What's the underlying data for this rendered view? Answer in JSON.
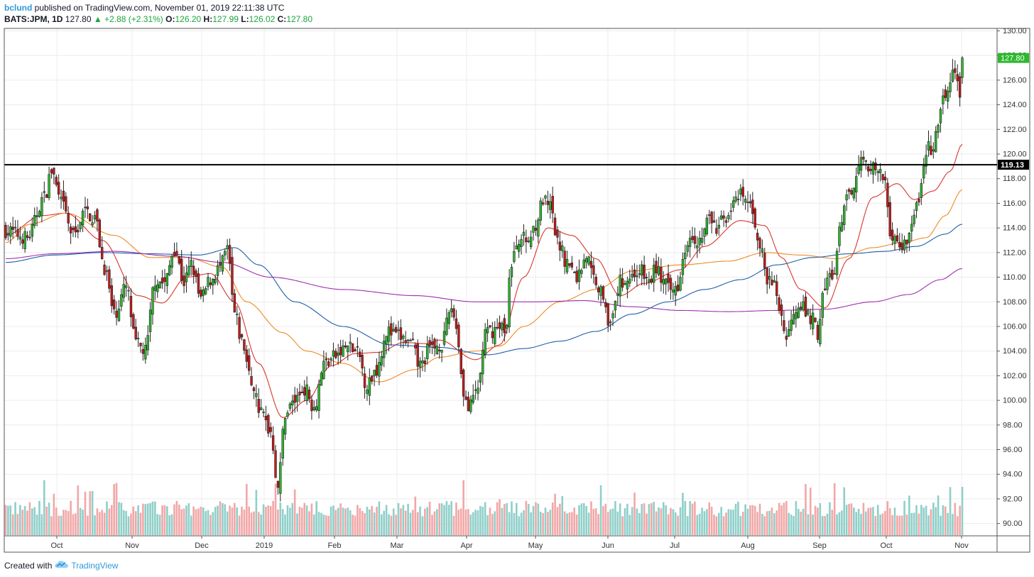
{
  "header": {
    "user": "bclund",
    "published_text": "published on TradingView.com, November 01, 2019 22:11:38 UTC",
    "symbol": "BATS:JPM, 1D",
    "last": "127.80",
    "change_arrow": "▲",
    "change": "+2.88 (+2.31%)",
    "o_label": "O:",
    "o_value": "126.20",
    "h_label": "H:",
    "h_value": "127.99",
    "l_label": "L:",
    "l_value": "126.02",
    "c_label": "C:",
    "c_value": "127.80"
  },
  "footer": {
    "created_with": "Created with",
    "brand": "TradingView",
    "logo_icon": "tradingview-cloud-icon"
  },
  "colors": {
    "up": "#2eb82e",
    "down": "#c41b1b",
    "vol_up": "#8fcfc9",
    "vol_down": "#f2a7a7",
    "ma20": "#d9362f",
    "ma50": "#f08a24",
    "ma100": "#1f5fa8",
    "ma200": "#a12fb0",
    "grid": "#ececec",
    "level_line": "#000000"
  },
  "chart_data": {
    "type": "candlestick",
    "y_axis_ticks": [
      "130.00",
      "128.00",
      "126.00",
      "124.00",
      "122.00",
      "120.00",
      "118.00",
      "116.00",
      "114.00",
      "112.00",
      "110.00",
      "108.00",
      "106.00",
      "104.00",
      "102.00",
      "100.00",
      "98.00",
      "96.00",
      "94.00",
      "92.00",
      "90.00"
    ],
    "ylim": [
      89,
      130.2
    ],
    "x_axis_ticks": [
      "Oct",
      "Nov",
      "Dec",
      "2019",
      "Feb",
      "Mar",
      "Apr",
      "May",
      "Jun",
      "Jul",
      "Aug",
      "Sep",
      "Oct",
      "Nov"
    ],
    "last_price_label": "127.80",
    "horizontal_level": {
      "value": 119.13,
      "label": "119.13"
    },
    "anchors": [
      {
        "d": 0,
        "p": 113.8
      },
      {
        "d": 9,
        "p": 113.2
      },
      {
        "d": 16,
        "p": 116.5
      },
      {
        "d": 19,
        "p": 118.6
      },
      {
        "d": 23,
        "p": 116.0
      },
      {
        "d": 28,
        "p": 113.4
      },
      {
        "d": 33,
        "p": 115.3
      },
      {
        "d": 37,
        "p": 114.8
      },
      {
        "d": 41,
        "p": 110.8
      },
      {
        "d": 45,
        "p": 107.0
      },
      {
        "d": 50,
        "p": 109.2
      },
      {
        "d": 54,
        "p": 104.6
      },
      {
        "d": 58,
        "p": 104.0
      },
      {
        "d": 62,
        "p": 109.8
      },
      {
        "d": 66,
        "p": 109.5
      },
      {
        "d": 70,
        "p": 112.3
      },
      {
        "d": 74,
        "p": 109.6
      },
      {
        "d": 77,
        "p": 111.0
      },
      {
        "d": 81,
        "p": 108.2
      },
      {
        "d": 85,
        "p": 109.8
      },
      {
        "d": 89,
        "p": 110.8
      },
      {
        "d": 92,
        "p": 112.2
      },
      {
        "d": 95,
        "p": 107.0
      },
      {
        "d": 98,
        "p": 104.8
      },
      {
        "d": 102,
        "p": 101.5
      },
      {
        "d": 106,
        "p": 99.0
      },
      {
        "d": 110,
        "p": 97.5
      },
      {
        "d": 113,
        "p": 93.0
      },
      {
        "d": 116,
        "p": 99.0
      },
      {
        "d": 120,
        "p": 100.0
      },
      {
        "d": 124,
        "p": 101.0
      },
      {
        "d": 128,
        "p": 99.5
      },
      {
        "d": 132,
        "p": 103.0
      },
      {
        "d": 137,
        "p": 103.6
      },
      {
        "d": 142,
        "p": 104.4
      },
      {
        "d": 146,
        "p": 103.8
      },
      {
        "d": 150,
        "p": 101.2
      },
      {
        "d": 154,
        "p": 102.6
      },
      {
        "d": 158,
        "p": 105.6
      },
      {
        "d": 163,
        "p": 105.2
      },
      {
        "d": 168,
        "p": 104.6
      },
      {
        "d": 172,
        "p": 102.8
      },
      {
        "d": 176,
        "p": 104.2
      },
      {
        "d": 181,
        "p": 104.6
      },
      {
        "d": 185,
        "p": 107.6
      },
      {
        "d": 187,
        "p": 106.0
      },
      {
        "d": 190,
        "p": 100.8
      },
      {
        "d": 192,
        "p": 99.2
      },
      {
        "d": 196,
        "p": 101.0
      },
      {
        "d": 199,
        "p": 105.4
      },
      {
        "d": 204,
        "p": 105.8
      },
      {
        "d": 208,
        "p": 106.0
      },
      {
        "d": 209,
        "p": 110.2
      },
      {
        "d": 213,
        "p": 113.2
      },
      {
        "d": 217,
        "p": 113.0
      },
      {
        "d": 220,
        "p": 114.4
      },
      {
        "d": 223,
        "p": 116.2
      },
      {
        "d": 226,
        "p": 115.6
      },
      {
        "d": 229,
        "p": 112.8
      },
      {
        "d": 233,
        "p": 111.2
      },
      {
        "d": 237,
        "p": 110.0
      },
      {
        "d": 241,
        "p": 111.8
      },
      {
        "d": 244,
        "p": 110.0
      },
      {
        "d": 248,
        "p": 108.6
      },
      {
        "d": 251,
        "p": 106.0
      },
      {
        "d": 255,
        "p": 109.6
      },
      {
        "d": 259,
        "p": 110.0
      },
      {
        "d": 263,
        "p": 110.6
      },
      {
        "d": 267,
        "p": 109.6
      },
      {
        "d": 270,
        "p": 110.8
      },
      {
        "d": 273,
        "p": 109.6
      },
      {
        "d": 276,
        "p": 108.8
      },
      {
        "d": 279,
        "p": 109.4
      },
      {
        "d": 281,
        "p": 111.8
      },
      {
        "d": 284,
        "p": 113.6
      },
      {
        "d": 288,
        "p": 113.0
      },
      {
        "d": 292,
        "p": 114.8
      },
      {
        "d": 295,
        "p": 113.8
      },
      {
        "d": 298,
        "p": 114.8
      },
      {
        "d": 302,
        "p": 115.8
      },
      {
        "d": 305,
        "p": 116.6
      },
      {
        "d": 308,
        "p": 116.0
      },
      {
        "d": 310,
        "p": 115.4
      },
      {
        "d": 312,
        "p": 113.4
      },
      {
        "d": 314,
        "p": 111.8
      },
      {
        "d": 316,
        "p": 109.6
      },
      {
        "d": 319,
        "p": 109.4
      },
      {
        "d": 322,
        "p": 106.8
      },
      {
        "d": 324,
        "p": 105.0
      },
      {
        "d": 327,
        "p": 107.4
      },
      {
        "d": 330,
        "p": 108.0
      },
      {
        "d": 332,
        "p": 107.0
      },
      {
        "d": 335,
        "p": 106.6
      },
      {
        "d": 337,
        "p": 105.4
      },
      {
        "d": 339,
        "p": 108.4
      },
      {
        "d": 342,
        "p": 110.2
      },
      {
        "d": 344,
        "p": 110.2
      },
      {
        "d": 346,
        "p": 113.6
      },
      {
        "d": 349,
        "p": 116.2
      },
      {
        "d": 352,
        "p": 117.6
      },
      {
        "d": 354,
        "p": 119.6
      },
      {
        "d": 357,
        "p": 119.2
      },
      {
        "d": 360,
        "p": 118.8
      },
      {
        "d": 363,
        "p": 118.2
      },
      {
        "d": 365,
        "p": 117.8
      },
      {
        "d": 367,
        "p": 113.6
      },
      {
        "d": 369,
        "p": 113.4
      },
      {
        "d": 371,
        "p": 112.2
      },
      {
        "d": 373,
        "p": 112.8
      },
      {
        "d": 376,
        "p": 114.2
      },
      {
        "d": 378,
        "p": 115.6
      },
      {
        "d": 381,
        "p": 118.8
      },
      {
        "d": 383,
        "p": 120.6
      },
      {
        "d": 385,
        "p": 120.2
      },
      {
        "d": 387,
        "p": 122.4
      },
      {
        "d": 389,
        "p": 124.4
      },
      {
        "d": 391,
        "p": 125.2
      },
      {
        "d": 393,
        "p": 126.4
      },
      {
        "d": 395,
        "p": 126.2
      },
      {
        "d": 396,
        "p": 124.9
      },
      {
        "d": 397,
        "p": 127.8
      }
    ],
    "moving_averages": [
      {
        "name": "MA20",
        "color_key": "ma20",
        "anchors": [
          {
            "d": 0,
            "p": 113.4
          },
          {
            "d": 15,
            "p": 115.0
          },
          {
            "d": 25,
            "p": 115.2
          },
          {
            "d": 40,
            "p": 113.0
          },
          {
            "d": 55,
            "p": 108.5
          },
          {
            "d": 65,
            "p": 107.9
          },
          {
            "d": 75,
            "p": 110.0
          },
          {
            "d": 85,
            "p": 110.3
          },
          {
            "d": 95,
            "p": 108.0
          },
          {
            "d": 105,
            "p": 103.0
          },
          {
            "d": 115,
            "p": 98.6
          },
          {
            "d": 125,
            "p": 100.0
          },
          {
            "d": 135,
            "p": 102.8
          },
          {
            "d": 145,
            "p": 103.8
          },
          {
            "d": 155,
            "p": 103.9
          },
          {
            "d": 165,
            "p": 104.7
          },
          {
            "d": 175,
            "p": 104.6
          },
          {
            "d": 180,
            "p": 104.9
          },
          {
            "d": 195,
            "p": 103.3
          },
          {
            "d": 205,
            "p": 104.5
          },
          {
            "d": 215,
            "p": 110.0
          },
          {
            "d": 225,
            "p": 114.0
          },
          {
            "d": 235,
            "p": 113.4
          },
          {
            "d": 245,
            "p": 111.5
          },
          {
            "d": 255,
            "p": 108.5
          },
          {
            "d": 265,
            "p": 109.5
          },
          {
            "d": 280,
            "p": 110.6
          },
          {
            "d": 290,
            "p": 112.5
          },
          {
            "d": 305,
            "p": 114.6
          },
          {
            "d": 315,
            "p": 114.2
          },
          {
            "d": 322,
            "p": 111.6
          },
          {
            "d": 330,
            "p": 109.0
          },
          {
            "d": 340,
            "p": 107.5
          },
          {
            "d": 350,
            "p": 111.5
          },
          {
            "d": 360,
            "p": 116.5
          },
          {
            "d": 370,
            "p": 117.6
          },
          {
            "d": 377,
            "p": 116.3
          },
          {
            "d": 385,
            "p": 117.0
          },
          {
            "d": 392,
            "p": 118.6
          },
          {
            "d": 397,
            "p": 120.8
          }
        ]
      },
      {
        "name": "MA50",
        "color_key": "ma50",
        "anchors": [
          {
            "d": 0,
            "p": 112.8
          },
          {
            "d": 10,
            "p": 114.3
          },
          {
            "d": 25,
            "p": 115.2
          },
          {
            "d": 45,
            "p": 113.4
          },
          {
            "d": 60,
            "p": 111.6
          },
          {
            "d": 75,
            "p": 111.6
          },
          {
            "d": 90,
            "p": 110.8
          },
          {
            "d": 100,
            "p": 108.0
          },
          {
            "d": 115,
            "p": 105.5
          },
          {
            "d": 125,
            "p": 104.0
          },
          {
            "d": 140,
            "p": 103.0
          },
          {
            "d": 155,
            "p": 101.5
          },
          {
            "d": 170,
            "p": 102.5
          },
          {
            "d": 180,
            "p": 103.5
          },
          {
            "d": 195,
            "p": 104.0
          },
          {
            "d": 205,
            "p": 104.4
          },
          {
            "d": 215,
            "p": 106.0
          },
          {
            "d": 230,
            "p": 108.0
          },
          {
            "d": 245,
            "p": 109.0
          },
          {
            "d": 260,
            "p": 110.5
          },
          {
            "d": 280,
            "p": 111.0
          },
          {
            "d": 300,
            "p": 111.3
          },
          {
            "d": 315,
            "p": 112.0
          },
          {
            "d": 330,
            "p": 111.8
          },
          {
            "d": 345,
            "p": 111.5
          },
          {
            "d": 360,
            "p": 112.4
          },
          {
            "d": 372,
            "p": 112.8
          },
          {
            "d": 382,
            "p": 113.2
          },
          {
            "d": 390,
            "p": 115.0
          },
          {
            "d": 397,
            "p": 117.1
          }
        ]
      },
      {
        "name": "MA100",
        "color_key": "ma100",
        "anchors": [
          {
            "d": 0,
            "p": 111.2
          },
          {
            "d": 20,
            "p": 111.8
          },
          {
            "d": 40,
            "p": 112.0
          },
          {
            "d": 60,
            "p": 111.9
          },
          {
            "d": 80,
            "p": 111.8
          },
          {
            "d": 95,
            "p": 112.4
          },
          {
            "d": 105,
            "p": 111.0
          },
          {
            "d": 120,
            "p": 108.0
          },
          {
            "d": 140,
            "p": 106.0
          },
          {
            "d": 160,
            "p": 104.5
          },
          {
            "d": 180,
            "p": 104.3
          },
          {
            "d": 200,
            "p": 103.7
          },
          {
            "d": 215,
            "p": 104.2
          },
          {
            "d": 230,
            "p": 104.8
          },
          {
            "d": 245,
            "p": 105.6
          },
          {
            "d": 260,
            "p": 107.0
          },
          {
            "d": 275,
            "p": 108.0
          },
          {
            "d": 290,
            "p": 109.0
          },
          {
            "d": 305,
            "p": 109.8
          },
          {
            "d": 320,
            "p": 111.0
          },
          {
            "d": 335,
            "p": 111.6
          },
          {
            "d": 350,
            "p": 111.9
          },
          {
            "d": 365,
            "p": 112.1
          },
          {
            "d": 378,
            "p": 112.5
          },
          {
            "d": 390,
            "p": 113.5
          },
          {
            "d": 397,
            "p": 114.3
          }
        ]
      },
      {
        "name": "MA200",
        "color_key": "ma200",
        "anchors": [
          {
            "d": 0,
            "p": 111.5
          },
          {
            "d": 20,
            "p": 111.9
          },
          {
            "d": 45,
            "p": 112.1
          },
          {
            "d": 70,
            "p": 111.7
          },
          {
            "d": 90,
            "p": 111.2
          },
          {
            "d": 110,
            "p": 110.0
          },
          {
            "d": 140,
            "p": 109.0
          },
          {
            "d": 170,
            "p": 108.5
          },
          {
            "d": 195,
            "p": 108.0
          },
          {
            "d": 220,
            "p": 108.0
          },
          {
            "d": 240,
            "p": 108.1
          },
          {
            "d": 260,
            "p": 107.6
          },
          {
            "d": 280,
            "p": 107.3
          },
          {
            "d": 300,
            "p": 107.2
          },
          {
            "d": 320,
            "p": 107.3
          },
          {
            "d": 340,
            "p": 107.4
          },
          {
            "d": 360,
            "p": 108.0
          },
          {
            "d": 375,
            "p": 108.6
          },
          {
            "d": 388,
            "p": 109.8
          },
          {
            "d": 397,
            "p": 110.7
          }
        ]
      }
    ],
    "volume_spikes": [
      {
        "d": 16,
        "v": 1.6
      },
      {
        "d": 30,
        "v": 1.45
      },
      {
        "d": 112,
        "v": 1.5
      },
      {
        "d": 190,
        "v": 1.6
      },
      {
        "d": 318,
        "v": 0.8
      },
      {
        "d": 392,
        "v": 1.4
      }
    ]
  }
}
